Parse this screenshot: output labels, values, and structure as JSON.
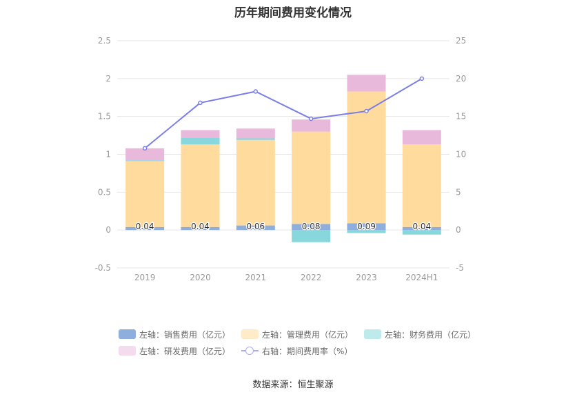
{
  "chart_data": {
    "type": "bar",
    "title": "历年期间费用变化情况",
    "categories": [
      "2019",
      "2020",
      "2021",
      "2022",
      "2023",
      "2024H1"
    ],
    "left_axis": {
      "ylim": [
        -0.5,
        2.5
      ],
      "ticks": [
        "-0.5",
        "0",
        "0.5",
        "1",
        "1.5",
        "2",
        "2.5"
      ]
    },
    "right_axis": {
      "ylim": [
        -5,
        25
      ],
      "ticks": [
        "-5",
        "0",
        "5",
        "10",
        "15",
        "20",
        "25"
      ]
    },
    "grid": true,
    "legend_position": "bottom",
    "series": [
      {
        "name": "左轴：销售费用（亿元）",
        "type": "stacked-bar",
        "axis": "left",
        "color": "#8eaedd",
        "values": [
          0.04,
          0.04,
          0.06,
          0.08,
          0.09,
          0.04
        ]
      },
      {
        "name": "左轴：管理费用（亿元）",
        "type": "stacked-bar",
        "axis": "left",
        "color": "#ffdb9e",
        "values": [
          0.87,
          1.09,
          1.13,
          1.22,
          1.74,
          1.09
        ]
      },
      {
        "name": "左轴：财务费用（亿元）",
        "type": "stacked-bar",
        "axis": "left",
        "color": "#87d7dc",
        "values": [
          0.01,
          0.09,
          0.02,
          -0.16,
          -0.04,
          -0.06
        ]
      },
      {
        "name": "左轴：研发费用（亿元）",
        "type": "stacked-bar",
        "axis": "left",
        "color": "#e8b9db",
        "values": [
          0.16,
          0.1,
          0.13,
          0.16,
          0.22,
          0.19
        ]
      },
      {
        "name": "右轴：期间费用率（%）",
        "type": "line",
        "axis": "right",
        "color": "#7b7ee6",
        "values": [
          10.8,
          16.8,
          18.3,
          14.7,
          15.7,
          20.0
        ]
      }
    ],
    "data_labels": [
      "0.04",
      "0.04",
      "0.06",
      "0.08",
      "0.09",
      "0.04"
    ]
  },
  "legend": {
    "row1": [
      "左轴：销售费用（亿元）",
      "左轴：管理费用（亿元）",
      "左轴：财务费用（亿元）"
    ],
    "row2": [
      "左轴：研发费用（亿元）",
      "右轴：期间费用率（%）"
    ]
  },
  "source": "数据来源：恒生聚源"
}
